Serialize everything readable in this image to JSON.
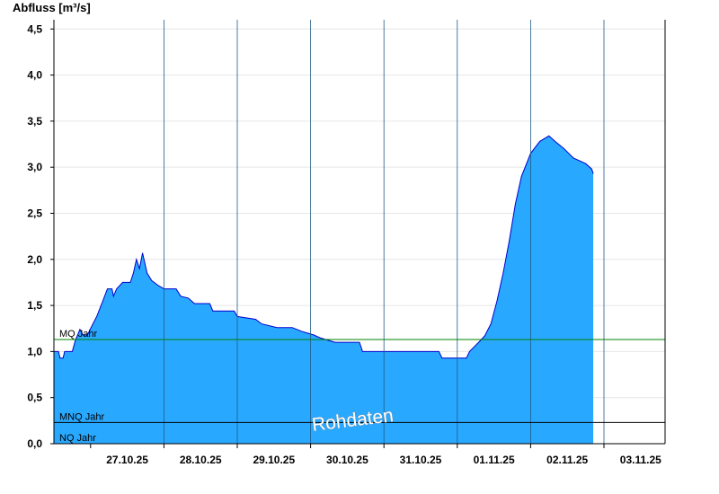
{
  "chart_data": {
    "type": "area",
    "ylabel": "Abfluss [m³/s]",
    "ylim": [
      0,
      4.6
    ],
    "yticks": [
      {
        "value": 0.0,
        "label": "0,0"
      },
      {
        "value": 0.5,
        "label": "0,5"
      },
      {
        "value": 1.0,
        "label": "1,0"
      },
      {
        "value": 1.5,
        "label": "1,5"
      },
      {
        "value": 2.0,
        "label": "2,0"
      },
      {
        "value": 2.5,
        "label": "2,5"
      },
      {
        "value": 3.0,
        "label": "3,0"
      },
      {
        "value": 3.5,
        "label": "3,5"
      },
      {
        "value": 4.0,
        "label": "4,0"
      },
      {
        "value": 4.5,
        "label": "4,5"
      }
    ],
    "xlim": [
      "26.10.25 12:00",
      "03.11.25 20:00"
    ],
    "xticks": [
      {
        "value": "27.10.25",
        "label": "27.10.25"
      },
      {
        "value": "28.10.25",
        "label": "28.10.25"
      },
      {
        "value": "29.10.25",
        "label": "29.10.25"
      },
      {
        "value": "30.10.25",
        "label": "30.10.25"
      },
      {
        "value": "31.10.25",
        "label": "31.10.25"
      },
      {
        "value": "01.11.25",
        "label": "01.11.25"
      },
      {
        "value": "02.11.25",
        "label": "02.11.25"
      },
      {
        "value": "03.11.25",
        "label": "03.11.25"
      }
    ],
    "grid": true,
    "fill_color": "#29a8ff",
    "line_color": "#0000cc",
    "series": [
      {
        "points": [
          [
            "26.10.25 12:00",
            1.0
          ],
          [
            "26.10.25 13:30",
            1.0
          ],
          [
            "26.10.25 14:00",
            0.93
          ],
          [
            "26.10.25 15:00",
            0.93
          ],
          [
            "26.10.25 15:30",
            1.0
          ],
          [
            "26.10.25 18:00",
            1.0
          ],
          [
            "26.10.25 19:00",
            1.12
          ],
          [
            "26.10.25 20:30",
            1.24
          ],
          [
            "26.10.25 21:30",
            1.18
          ],
          [
            "26.10.25 23:00",
            1.18
          ],
          [
            "27.10.25 00:00",
            1.25
          ],
          [
            "27.10.25 02:00",
            1.38
          ],
          [
            "27.10.25 04:00",
            1.55
          ],
          [
            "27.10.25 05:30",
            1.68
          ],
          [
            "27.10.25 07:00",
            1.68
          ],
          [
            "27.10.25 07:30",
            1.6
          ],
          [
            "27.10.25 08:30",
            1.68
          ],
          [
            "27.10.25 10:30",
            1.75
          ],
          [
            "27.10.25 13:00",
            1.75
          ],
          [
            "27.10.25 14:00",
            1.85
          ],
          [
            "27.10.25 15:00",
            2.0
          ],
          [
            "27.10.25 16:00",
            1.9
          ],
          [
            "27.10.25 17:00",
            2.07
          ],
          [
            "27.10.25 18:30",
            1.85
          ],
          [
            "27.10.25 20:00",
            1.77
          ],
          [
            "27.10.25 22:00",
            1.72
          ],
          [
            "28.10.25 00:00",
            1.68
          ],
          [
            "28.10.25 04:00",
            1.68
          ],
          [
            "28.10.25 05:30",
            1.6
          ],
          [
            "28.10.25 08:00",
            1.58
          ],
          [
            "28.10.25 10:00",
            1.52
          ],
          [
            "28.10.25 15:00",
            1.52
          ],
          [
            "28.10.25 16:00",
            1.44
          ],
          [
            "28.10.25 23:00",
            1.44
          ],
          [
            "29.10.25 00:00",
            1.38
          ],
          [
            "29.10.25 06:00",
            1.35
          ],
          [
            "29.10.25 08:00",
            1.3
          ],
          [
            "29.10.25 13:00",
            1.26
          ],
          [
            "29.10.25 18:00",
            1.26
          ],
          [
            "29.10.25 21:00",
            1.22
          ],
          [
            "29.10.25 23:00",
            1.2
          ],
          [
            "30.10.25 01:00",
            1.18
          ],
          [
            "30.10.25 03:00",
            1.15
          ],
          [
            "30.10.25 08:00",
            1.1
          ],
          [
            "30.10.25 16:00",
            1.1
          ],
          [
            "30.10.25 17:00",
            1.0
          ],
          [
            "31.10.25 00:00",
            1.0
          ],
          [
            "31.10.25 18:00",
            1.0
          ],
          [
            "31.10.25 19:00",
            0.93
          ],
          [
            "31.10.25 22:00",
            0.93
          ],
          [
            "31.10.25 23:00",
            0.93
          ],
          [
            "01.11.25 01:00",
            0.93
          ],
          [
            "01.11.25 03:00",
            0.93
          ],
          [
            "01.11.25 04:00",
            1.0
          ],
          [
            "01.11.25 07:00",
            1.1
          ],
          [
            "01.11.25 09:00",
            1.17
          ],
          [
            "01.11.25 11:00",
            1.3
          ],
          [
            "01.11.25 13:00",
            1.55
          ],
          [
            "01.11.25 15:00",
            1.85
          ],
          [
            "01.11.25 17:00",
            2.2
          ],
          [
            "01.11.25 19:00",
            2.6
          ],
          [
            "01.11.25 21:00",
            2.9
          ],
          [
            "02.11.25 00:00",
            3.15
          ],
          [
            "02.11.25 03:00",
            3.28
          ],
          [
            "02.11.25 06:00",
            3.34
          ],
          [
            "02.11.25 08:00",
            3.28
          ],
          [
            "02.11.25 11:00",
            3.2
          ],
          [
            "02.11.25 14:00",
            3.1
          ],
          [
            "02.11.25 18:00",
            3.04
          ],
          [
            "02.11.25 20:00",
            2.98
          ],
          [
            "02.11.25 20:30",
            2.93
          ]
        ]
      }
    ],
    "reference_lines": [
      {
        "label": "MQ Jahr",
        "value": 1.13,
        "color": "#008000"
      },
      {
        "label": "MNQ Jahr",
        "value": 0.23,
        "color": "#000000"
      },
      {
        "label": "NQ Jahr",
        "value": 0.0,
        "color": "#000000"
      }
    ],
    "watermark": "Rohdaten"
  }
}
